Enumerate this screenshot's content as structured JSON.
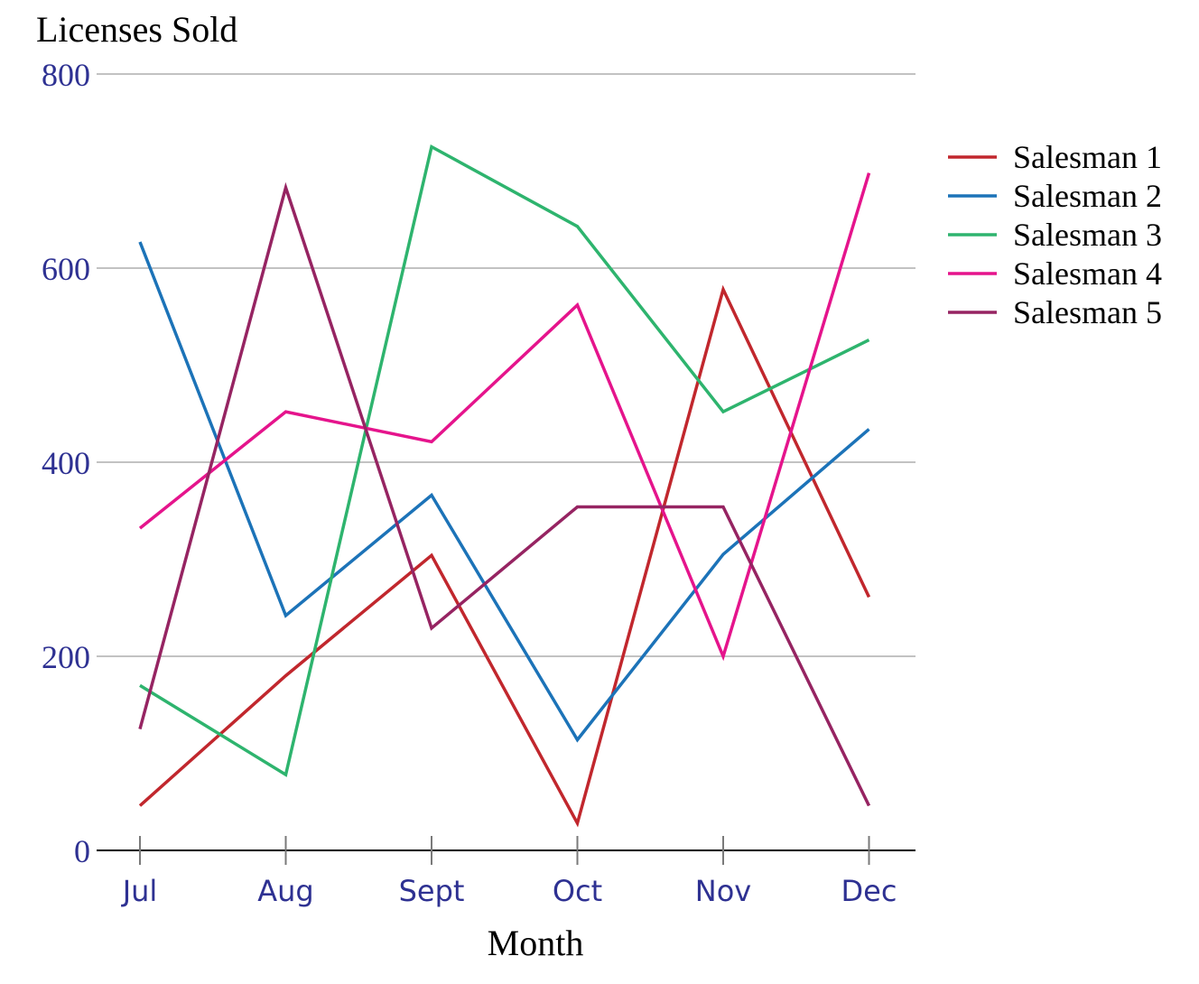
{
  "chart_data": {
    "type": "line",
    "title": "",
    "ylabel": "Licenses Sold",
    "xlabel": "Month",
    "categories": [
      "Jul",
      "Aug",
      "Sept",
      "Oct",
      "Nov",
      "Dec"
    ],
    "ylim": [
      0,
      800
    ],
    "yticks": [
      0,
      200,
      400,
      600,
      800
    ],
    "grid": true,
    "legend_position": "right",
    "series": [
      {
        "name": "Salesman 1",
        "color": "#c1272d",
        "values": [
          46,
          180,
          304,
          28,
          578,
          261
        ]
      },
      {
        "name": "Salesman 2",
        "color": "#1c73b8",
        "values": [
          627,
          242,
          366,
          114,
          305,
          434
        ]
      },
      {
        "name": "Salesman 3",
        "color": "#2eb46e",
        "values": [
          170,
          78,
          725,
          643,
          452,
          526
        ]
      },
      {
        "name": "Salesman 4",
        "color": "#e5148c",
        "values": [
          332,
          452,
          421,
          562,
          200,
          698
        ]
      },
      {
        "name": "Salesman 5",
        "color": "#962462",
        "values": [
          125,
          683,
          229,
          354,
          354,
          46
        ]
      }
    ],
    "colors": {
      "tick_text": "#2e3192",
      "grid": "#9e9e9e",
      "axis": "#000000"
    }
  }
}
